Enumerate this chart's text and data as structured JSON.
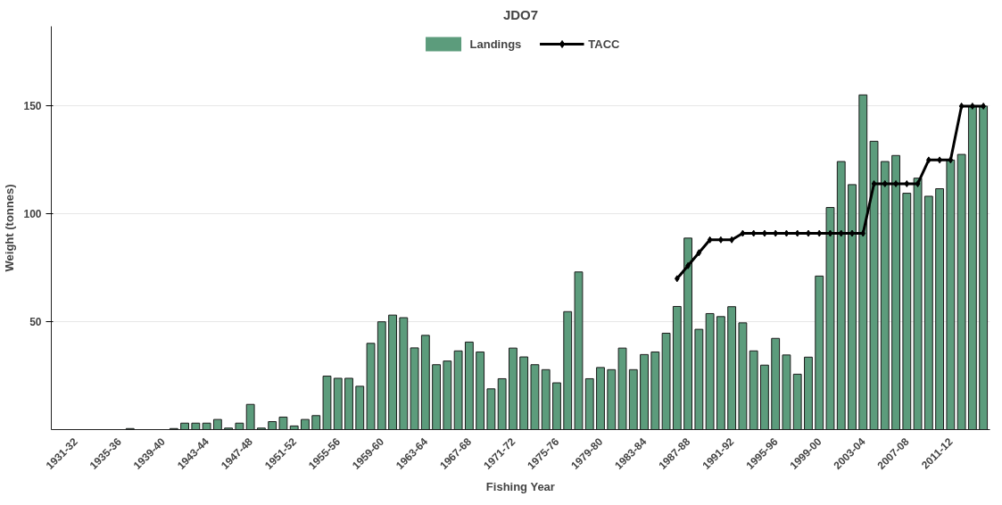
{
  "chart_data": {
    "type": "bar",
    "title": "JDO7",
    "xlabel": "Fishing Year",
    "ylabel": "Weight (tonnes)",
    "categories": [
      "1931-32",
      null,
      null,
      null,
      "1935-36",
      null,
      null,
      null,
      "1939-40",
      null,
      null,
      null,
      "1943-44",
      null,
      null,
      null,
      "1947-48",
      null,
      null,
      null,
      "1951-52",
      null,
      null,
      null,
      "1955-56",
      null,
      null,
      null,
      "1959-60",
      null,
      null,
      null,
      "1963-64",
      null,
      null,
      null,
      "1967-68",
      null,
      null,
      null,
      "1971-72",
      null,
      null,
      null,
      "1975-76",
      null,
      null,
      null,
      "1979-80",
      null,
      null,
      null,
      "1983-84",
      null,
      null,
      null,
      "1987-88",
      null,
      null,
      null,
      "1991-92",
      null,
      null,
      null,
      "1995-96",
      null,
      null,
      null,
      "1999-00",
      null,
      null,
      null,
      "2003-04",
      null,
      null,
      null,
      "2007-08",
      null,
      null,
      null,
      "2011-12",
      null,
      null,
      null
    ],
    "series": [
      {
        "name": "Landings",
        "color": "#5c9c7c",
        "values": [
          0,
          0,
          0,
          0,
          0,
          0.5,
          0,
          0,
          0,
          0.5,
          3,
          3,
          3,
          4.7,
          0.7,
          3,
          11.7,
          0.7,
          3.7,
          5.8,
          1.7,
          4.7,
          6.5,
          24.8,
          23.8,
          23.8,
          20.1,
          40,
          50,
          53.1,
          51.9,
          37.9,
          43.7,
          30.1,
          31.8,
          36.5,
          40.6,
          36,
          18.9,
          23.6,
          37.8,
          33.7,
          30.1,
          27.8,
          21.7,
          54.7,
          73.1,
          23.6,
          28.8,
          27.8,
          37.8,
          27.8,
          34.8,
          36,
          44.7,
          57.1,
          88.8,
          46.5,
          53.8,
          52.4,
          57,
          49.5,
          36.5,
          29.9,
          42.3,
          34.6,
          25.7,
          33.6,
          71.2,
          103,
          124.3,
          113.6,
          155.2,
          133.7,
          124.3,
          127.1,
          109.6,
          116.6,
          108.2,
          111.7,
          125,
          127.6,
          150,
          150
        ]
      },
      {
        "name": "TACC",
        "type": "line",
        "color": "#000000",
        "marker": "diamond",
        "values": [
          null,
          null,
          null,
          null,
          null,
          null,
          null,
          null,
          null,
          null,
          null,
          null,
          null,
          null,
          null,
          null,
          null,
          null,
          null,
          null,
          null,
          null,
          null,
          null,
          null,
          null,
          null,
          null,
          null,
          null,
          null,
          null,
          null,
          null,
          null,
          null,
          null,
          null,
          null,
          null,
          null,
          null,
          null,
          null,
          null,
          null,
          null,
          null,
          null,
          null,
          null,
          null,
          null,
          null,
          null,
          70,
          76,
          82,
          88,
          88,
          88,
          91,
          91,
          91,
          91,
          91,
          91,
          91,
          91,
          91,
          91,
          91,
          91,
          114,
          114,
          114,
          114,
          114,
          125,
          125,
          125,
          150,
          150,
          150
        ]
      }
    ],
    "ylim": [
      0,
      187
    ],
    "yticks": [
      50,
      100,
      150
    ],
    "grid": "y",
    "legend": "top"
  }
}
